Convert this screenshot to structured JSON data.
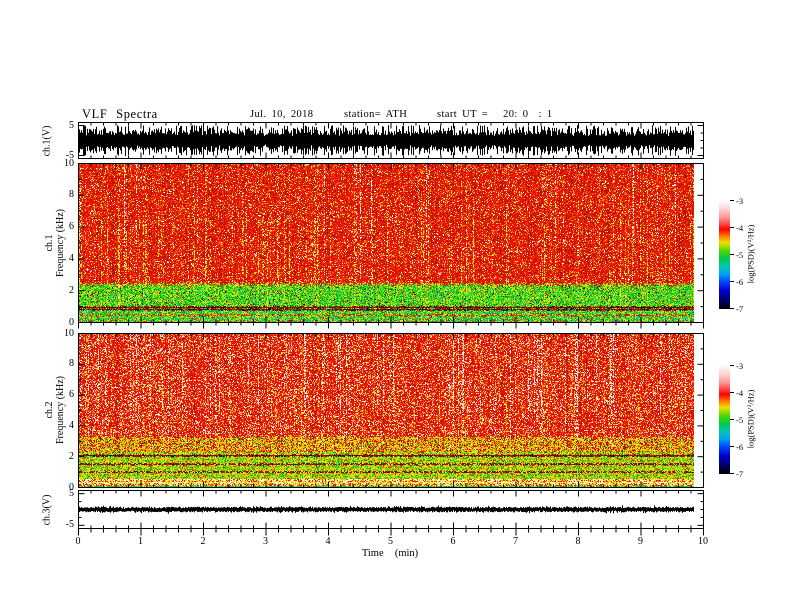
{
  "title_row": {
    "main": "VLF Spectra",
    "date": "Jul. 10, 2018",
    "station": "station= ATH",
    "start_ut": "start UT =   20: 0  : 1"
  },
  "axes": {
    "x": {
      "title": "Time  (min)",
      "majors": [
        0,
        1,
        2,
        3,
        4,
        5,
        6,
        7,
        8,
        9,
        10
      ],
      "minor_step": 0.2,
      "range": [
        0,
        10
      ],
      "data_end": 9.84
    },
    "spec_y": {
      "majors": [
        10,
        8,
        6,
        4,
        2,
        0
      ],
      "minors": [
        9,
        7,
        5,
        3,
        1
      ],
      "range": [
        0,
        10
      ]
    },
    "wave_y": {
      "majors": [
        5,
        -5
      ],
      "minors": [
        2.5,
        0,
        -2.5
      ],
      "range": [
        -6,
        6
      ]
    }
  },
  "panels": {
    "wave1": {
      "ylabel": "ch.1(V)"
    },
    "spec1": {
      "ylabel_line1": "ch.1",
      "ylabel_line2": "Frequency  (kHz)"
    },
    "spec2": {
      "ylabel_line1": "ch.2",
      "ylabel_line2": "Frequency  (kHz)"
    },
    "wave3": {
      "ylabel": "ch.3(V)"
    }
  },
  "colorbar": {
    "label": "log(PSD)(V²/Hz)",
    "tick_labels": [
      "-3",
      "-4",
      "-5",
      "-6",
      "-7"
    ],
    "gradient": [
      [
        "#ffffff",
        0
      ],
      [
        "#ffd6d6",
        8
      ],
      [
        "#ff9696",
        16
      ],
      [
        "#ff3c3c",
        23
      ],
      [
        "#ff0000",
        27
      ],
      [
        "#ff7800",
        33
      ],
      [
        "#f0e000",
        39
      ],
      [
        "#46d800",
        47
      ],
      [
        "#00c850",
        54
      ],
      [
        "#00c8b4",
        61
      ],
      [
        "#00a0f0",
        68
      ],
      [
        "#0046ff",
        75
      ],
      [
        "#0000d2",
        83
      ],
      [
        "#000078",
        91
      ],
      [
        "#000000",
        100
      ]
    ]
  },
  "chart_data": [
    {
      "type": "line",
      "id": "ch1-waveform",
      "ylabel": "ch.1(V)",
      "ylim": [
        -6,
        6
      ],
      "yticks": [
        5,
        -5
      ],
      "x_range_min": [
        0,
        9.84
      ],
      "description": "dense broadband noise trace centered at 0 V, typical envelope ±3.5 V, peaks to ±5 V, continuous for the full record",
      "render": {
        "base": 1.5,
        "tail": 1.25,
        "clip": 5.0,
        "seed": 101
      }
    },
    {
      "type": "heatmap",
      "id": "ch1-spectrogram",
      "ylabel": "ch.1 Frequency (kHz)",
      "ylim": [
        0,
        10
      ],
      "xlim_min": [
        0,
        9.84
      ],
      "zlabel": "log(PSD)(V²/Hz)",
      "zlim": [
        -7,
        -3
      ],
      "description": "red field (~-4) above 2.5 kHz with vertical yellow sferic streaks; green band (~-5) 1-2.3 kHz; dark narrow PSD lines near 0.8 and 0.95 kHz; green/cyan mottle below 0.75 kHz",
      "seed": 202,
      "streaks": {
        "yellow": {
          "prob": 0.17,
          "colors": [
            "#f0d800",
            "#ffe93c"
          ]
        },
        "white": {
          "prob": 0.03,
          "colors": [
            "#ffffff",
            "#ffc8c8"
          ]
        }
      },
      "bands": [
        {
          "f": [
            0.9,
            1.01
          ],
          "colors": [
            [
              "#821000",
              45
            ],
            [
              "#4a0800",
              22
            ],
            [
              "#000000",
              13
            ],
            [
              "#c81800",
              20
            ]
          ],
          "sy": 0,
          "sw": 0,
          "sd": 0,
          "dark": "#000000"
        },
        {
          "f": [
            0.76,
            0.86
          ],
          "colors": [
            [
              "#821000",
              40
            ],
            [
              "#4a0800",
              20
            ],
            [
              "#000000",
              12
            ],
            [
              "#c81800",
              18
            ],
            [
              "#16d21f",
              10
            ]
          ],
          "sy": 0,
          "sw": 0,
          "sd": 0,
          "dark": "#000000"
        },
        {
          "f": [
            2.3,
            2.48
          ],
          "colors": [
            [
              "#e41400",
              34
            ],
            [
              "#cfe400",
              30
            ],
            [
              "#16d21f",
              30
            ],
            [
              "#f0d800",
              6
            ]
          ],
          "sy": 0.3,
          "sw": 0,
          "sd": 0.1,
          "dark": "#b01000"
        },
        {
          "f": [
            2.48,
            10.2
          ],
          "colors": [
            [
              "#e41400",
              46
            ],
            [
              "#f52800",
              18
            ],
            [
              "#c61000",
              12
            ],
            [
              "#ff5533",
              6
            ],
            [
              "#ffaaaa",
              3
            ],
            [
              "#ffffff",
              3
            ],
            [
              "#f0d800",
              5
            ],
            [
              "#8c0a00",
              3
            ],
            [
              "#ff8800",
              4
            ]
          ],
          "sy": 0.55,
          "sw": 0.55,
          "sd": 0.45,
          "dark": "#b01000"
        },
        {
          "f": [
            1.01,
            2.3
          ],
          "colors": [
            [
              "#16d21f",
              38
            ],
            [
              "#5ce83c",
              13
            ],
            [
              "#cfe400",
              24
            ],
            [
              "#0a9f12",
              10
            ],
            [
              "#e42000",
              5
            ],
            [
              "#111111",
              3
            ],
            [
              "#00c8a0",
              4
            ],
            [
              "#f0d800",
              3
            ]
          ],
          "sy": 0.28,
          "sw": 0,
          "sd": 0.12,
          "dark": "#0a7a0e"
        },
        {
          "f": [
            0.4,
            0.52
          ],
          "colors": [
            [
              "#e42000",
              36
            ],
            [
              "#cfe400",
              28
            ],
            [
              "#16d21f",
              24
            ],
            [
              "#821000",
              12
            ]
          ],
          "sy": 0,
          "sw": 0,
          "sd": 0,
          "dark": "#821000"
        },
        {
          "f": [
            0.1,
            0.76
          ],
          "colors": [
            [
              "#16d21f",
              30
            ],
            [
              "#cfe400",
              25
            ],
            [
              "#00c8a8",
              11
            ],
            [
              "#5ce83c",
              12
            ],
            [
              "#e42000",
              9
            ],
            [
              "#0a9f12",
              7
            ],
            [
              "#18b6e0",
              6
            ]
          ],
          "sy": 0.15,
          "sw": 0,
          "sd": 0.1,
          "dark": "#0a7a0e"
        },
        {
          "f": [
            -0.5,
            0.1
          ],
          "colors": [
            [
              "#e42000",
              30
            ],
            [
              "#f0d800",
              25
            ],
            [
              "#16d21f",
              25
            ],
            [
              "#00c8a8",
              20
            ]
          ],
          "sy": 0,
          "sw": 0,
          "sd": 0,
          "dark": "#821000"
        }
      ]
    },
    {
      "type": "heatmap",
      "id": "ch2-spectrogram",
      "ylabel": "ch.2 Frequency (kHz)",
      "ylim": [
        0,
        10
      ],
      "xlim_min": [
        0,
        9.84
      ],
      "zlabel": "log(PSD)(V²/Hz)",
      "zlim": [
        -7,
        -3
      ],
      "description": "red field with pink/white sferic streaks above 3.3 kHz; yellow-orange mottle 2.3-3.3 kHz; yellow-green band 0.55-2.3 kHz with dark PSD lines near 2.1, 1.5 and 1.0 kHz; striped white/yellow/red layers below 0.55 kHz",
      "seed": 303,
      "streaks": {
        "yellow": {
          "prob": 0.16,
          "colors": [
            "#f0d800",
            "#ffe93c"
          ]
        },
        "white": {
          "prob": 0.1,
          "colors": [
            "#ffffff",
            "#ffc0b6"
          ]
        }
      },
      "bands": [
        {
          "f": [
            2.02,
            2.14
          ],
          "colors": [
            [
              "#821000",
              45
            ],
            [
              "#4a0800",
              20
            ],
            [
              "#c81800",
              25
            ],
            [
              "#000000",
              10
            ]
          ],
          "sy": 0,
          "sw": 0,
          "sd": 0,
          "dark": "#000000"
        },
        {
          "f": [
            1.46,
            1.58
          ],
          "colors": [
            [
              "#821000",
              40
            ],
            [
              "#c81800",
              25
            ],
            [
              "#4a0800",
              15
            ],
            [
              "#cfe400",
              20
            ]
          ],
          "sy": 0,
          "sw": 0,
          "sd": 0,
          "dark": "#000000"
        },
        {
          "f": [
            0.95,
            1.06
          ],
          "colors": [
            [
              "#821000",
              38
            ],
            [
              "#c81800",
              25
            ],
            [
              "#4a0800",
              12
            ],
            [
              "#cfe400",
              25
            ]
          ],
          "sy": 0,
          "sw": 0,
          "sd": 0,
          "dark": "#000000"
        },
        {
          "f": [
            3.3,
            10.2
          ],
          "colors": [
            [
              "#e41400",
              42
            ],
            [
              "#f52800",
              15
            ],
            [
              "#ff7f66",
              9
            ],
            [
              "#ffb4aa",
              8
            ],
            [
              "#ffffff",
              5
            ],
            [
              "#c61000",
              11
            ],
            [
              "#f0d800",
              5
            ],
            [
              "#ff9900",
              5
            ]
          ],
          "sy": 0.35,
          "sw": 0.6,
          "sd": 0.4,
          "dark": "#b01000"
        },
        {
          "f": [
            2.3,
            3.3
          ],
          "colors": [
            [
              "#e41400",
              28
            ],
            [
              "#ff9100",
              18
            ],
            [
              "#f0d800",
              26
            ],
            [
              "#cfe400",
              12
            ],
            [
              "#16d21f",
              9
            ],
            [
              "#8c0a00",
              4
            ],
            [
              "#ffffff",
              3
            ]
          ],
          "sy": 0.35,
          "sw": 0.15,
          "sd": 0.25,
          "dark": "#b01000"
        },
        {
          "f": [
            0.55,
            2.3
          ],
          "colors": [
            [
              "#cfe400",
              28
            ],
            [
              "#f0d800",
              16
            ],
            [
              "#16d21f",
              20
            ],
            [
              "#5ce83c",
              12
            ],
            [
              "#ff9100",
              9
            ],
            [
              "#e42000",
              9
            ],
            [
              "#0a9f12",
              6
            ]
          ],
          "sy": 0.2,
          "sw": 0,
          "sd": 0.15,
          "dark": "#7a9a00"
        },
        {
          "f": [
            0.46,
            0.55
          ],
          "colors": [
            [
              "#fff6dc",
              50
            ],
            [
              "#f0d800",
              30
            ],
            [
              "#e42000",
              20
            ]
          ],
          "sy": 0,
          "sw": 0,
          "sd": 0,
          "dark": "#e42000"
        },
        {
          "f": [
            0.36,
            0.46
          ],
          "colors": [
            [
              "#e42000",
              35
            ],
            [
              "#f0d800",
              42
            ],
            [
              "#fff6dc",
              23
            ]
          ],
          "sy": 0,
          "sw": 0,
          "sd": 0,
          "dark": "#e42000"
        },
        {
          "f": [
            0.26,
            0.36
          ],
          "colors": [
            [
              "#fff6dc",
              52
            ],
            [
              "#f0d800",
              30
            ],
            [
              "#ff9100",
              18
            ]
          ],
          "sy": 0,
          "sw": 0,
          "sd": 0,
          "dark": "#e42000"
        },
        {
          "f": [
            0.12,
            0.26
          ],
          "colors": [
            [
              "#e42000",
              38
            ],
            [
              "#f0d800",
              40
            ],
            [
              "#fff6dc",
              22
            ]
          ],
          "sy": 0,
          "sw": 0,
          "sd": 0,
          "dark": "#e42000"
        },
        {
          "f": [
            -0.5,
            0.12
          ],
          "colors": [
            [
              "#16d21f",
              38
            ],
            [
              "#00c8a8",
              20
            ],
            [
              "#cfe400",
              24
            ],
            [
              "#e42000",
              18
            ]
          ],
          "sy": 0,
          "sw": 0,
          "sd": 0,
          "dark": "#0a7a0e"
        }
      ]
    },
    {
      "type": "line",
      "id": "ch3-waveform",
      "ylabel": "ch.3(V)",
      "ylim": [
        -6,
        6
      ],
      "yticks": [
        5,
        -5
      ],
      "x_range_min": [
        0,
        9.84
      ],
      "description": "flat trace pinned at 0 V (thick black line, negligible noise)",
      "render": {
        "base": 0.42,
        "tail": 0.14,
        "clip": 1.1,
        "seed": 404
      }
    }
  ]
}
